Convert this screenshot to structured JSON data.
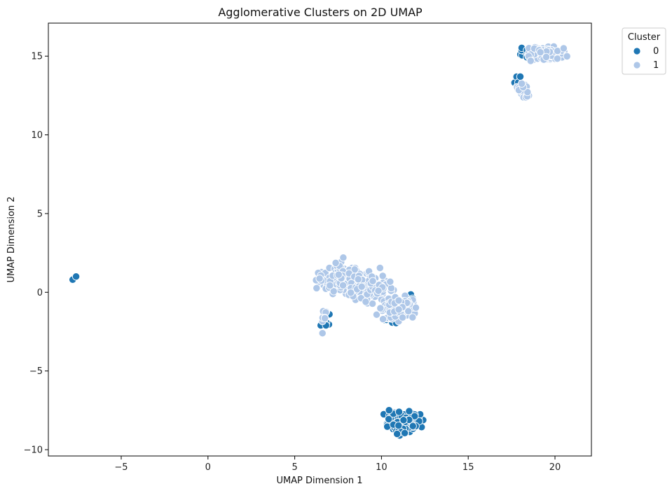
{
  "chart_data": {
    "type": "scatter",
    "title": "Agglomerative Clusters on 2D UMAP",
    "xlabel": "UMAP Dimension 1",
    "ylabel": "UMAP Dimension 2",
    "xlim": [
      -9.2,
      22.1
    ],
    "ylim": [
      -10.4,
      17.1
    ],
    "xticks": [
      -5,
      0,
      5,
      10,
      15,
      20
    ],
    "yticks": [
      -10,
      -5,
      0,
      5,
      10,
      15
    ],
    "xtick_labels": [
      "−5",
      "0",
      "5",
      "10",
      "15",
      "20"
    ],
    "ytick_labels": [
      "−10",
      "−5",
      "0",
      "5",
      "10",
      "15"
    ],
    "grid": false,
    "legend": {
      "title": "Cluster",
      "placement": "outside-top-right",
      "entries": [
        "0",
        "1"
      ]
    },
    "colors": {
      "0": "#1f77b4",
      "1": "#aec7e8"
    },
    "series": [
      {
        "name": "0",
        "color": "#1f77b4",
        "clusters": [
          {
            "cx": 11.2,
            "cy": -8.2,
            "rx": 0.75,
            "ry": 0.55,
            "n": 120
          },
          {
            "cx": 6.7,
            "cy": -2.0,
            "rx": 0.25,
            "ry": 0.15,
            "n": 6
          },
          {
            "cx": 18.2,
            "cy": 15.2,
            "rx": 0.3,
            "ry": 0.3,
            "n": 8
          },
          {
            "cx": 17.9,
            "cy": 13.2,
            "rx": 0.2,
            "ry": 0.4,
            "n": 6
          },
          {
            "cx": 10.6,
            "cy": -1.8,
            "rx": 0.5,
            "ry": 0.3,
            "n": 6
          },
          {
            "cx": 11.6,
            "cy": -0.5,
            "rx": 0.3,
            "ry": 0.3,
            "n": 4
          }
        ],
        "points": [
          [
            -7.8,
            0.8
          ],
          [
            -7.6,
            1.0
          ],
          [
            10.9,
            -9.0
          ],
          [
            18.0,
            13.7
          ],
          [
            6.5,
            -2.1
          ],
          [
            6.8,
            -2.1
          ],
          [
            11.8,
            -0.4
          ],
          [
            7.0,
            -1.4
          ]
        ]
      },
      {
        "name": "1",
        "color": "#aec7e8",
        "clusters": [
          {
            "cx": 7.6,
            "cy": 0.9,
            "rx": 1.0,
            "ry": 0.8,
            "n": 140
          },
          {
            "cx": 9.3,
            "cy": 0.3,
            "rx": 1.0,
            "ry": 0.8,
            "n": 130
          },
          {
            "cx": 10.9,
            "cy": -1.0,
            "rx": 0.9,
            "ry": 0.7,
            "n": 110
          },
          {
            "cx": 6.7,
            "cy": -1.6,
            "rx": 0.15,
            "ry": 0.5,
            "n": 8
          },
          {
            "cx": 19.4,
            "cy": 15.2,
            "rx": 0.9,
            "ry": 0.4,
            "n": 90
          },
          {
            "cx": 18.2,
            "cy": 12.7,
            "rx": 0.3,
            "ry": 0.5,
            "n": 22
          }
        ],
        "points": [
          [
            6.6,
            -2.6
          ],
          [
            20.5,
            15.5
          ],
          [
            18.6,
            14.7
          ],
          [
            7.8,
            2.2
          ]
        ]
      }
    ]
  }
}
